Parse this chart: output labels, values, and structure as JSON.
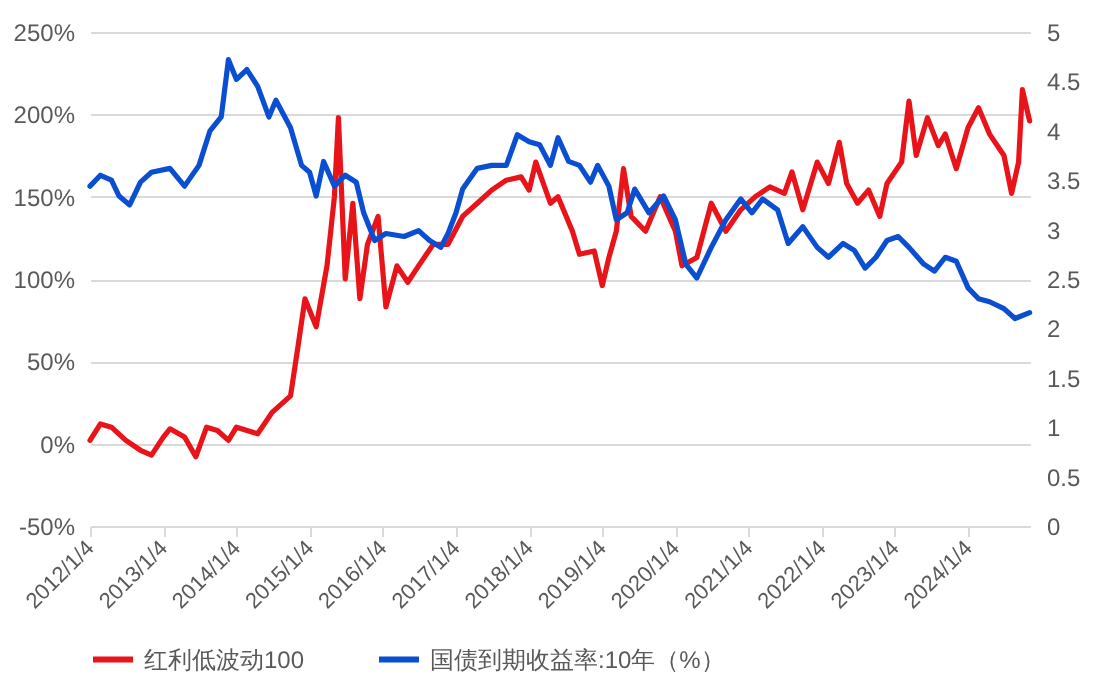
{
  "chart_data": {
    "type": "line",
    "legend": "bottom",
    "grid": "y",
    "xlim": [
      "2012-01-04",
      "2024-11-08"
    ],
    "xticks": [
      {
        "value": "2012-01-04",
        "label": "2012/1/4"
      },
      {
        "value": "2013-01-04",
        "label": "2013/1/4"
      },
      {
        "value": "2014-01-04",
        "label": "2014/1/4"
      },
      {
        "value": "2015-01-04",
        "label": "2015/1/4"
      },
      {
        "value": "2016-01-04",
        "label": "2016/1/4"
      },
      {
        "value": "2017-01-04",
        "label": "2017/1/4"
      },
      {
        "value": "2018-01-04",
        "label": "2018/1/4"
      },
      {
        "value": "2019-01-04",
        "label": "2019/1/4"
      },
      {
        "value": "2020-01-04",
        "label": "2020/1/4"
      },
      {
        "value": "2021-01-04",
        "label": "2021/1/4"
      },
      {
        "value": "2022-01-04",
        "label": "2022/1/4"
      },
      {
        "value": "2023-01-04",
        "label": "2023/1/4"
      },
      {
        "value": "2024-01-04",
        "label": "2024/1/4"
      }
    ],
    "ylim": [
      -50,
      250
    ],
    "yticks": [
      {
        "value": -50,
        "label": "-50%"
      },
      {
        "value": 0,
        "label": "0%"
      },
      {
        "value": 50,
        "label": "50%"
      },
      {
        "value": 100,
        "label": "100%"
      },
      {
        "value": 150,
        "label": "150%"
      },
      {
        "value": 200,
        "label": "200%"
      },
      {
        "value": 250,
        "label": "250%"
      }
    ],
    "y2lim": [
      0,
      5
    ],
    "y2ticks": [
      0,
      0.5,
      1,
      1.5,
      2,
      2.5,
      3,
      3.5,
      4,
      4.5,
      5
    ],
    "series": [
      {
        "name": "红利低波动100",
        "color": "#e8141a",
        "x": [
          "2012-01-04",
          "2012-02-25",
          "2012-04-20",
          "2012-07-01",
          "2012-09-12",
          "2012-11-06",
          "2013-01-04",
          "2013-02-06",
          "2013-04-20",
          "2013-06-15",
          "2013-08-08",
          "2013-10-01",
          "2013-11-25",
          "2014-01-04",
          "2014-04-20",
          "2014-07-01",
          "2014-10-01",
          "2014-11-06",
          "2014-12-12",
          "2015-02-06",
          "2015-04-01",
          "2015-05-08",
          "2015-05-28",
          "2015-07-01",
          "2015-08-08",
          "2015-09-12",
          "2015-10-20",
          "2015-12-12",
          "2016-01-20",
          "2016-03-15",
          "2016-05-08",
          "2016-07-01",
          "2016-09-12",
          "2016-11-25",
          "2017-02-06",
          "2017-04-20",
          "2017-07-01",
          "2017-09-12",
          "2017-11-25",
          "2018-01-04",
          "2018-02-06",
          "2018-04-20",
          "2018-05-28",
          "2018-08-08",
          "2018-09-12",
          "2018-11-25",
          "2019-01-04",
          "2019-02-06",
          "2019-03-15",
          "2019-04-20",
          "2019-05-28",
          "2019-08-08",
          "2019-10-20",
          "2020-01-04",
          "2020-02-06",
          "2020-04-20",
          "2020-07-01",
          "2020-09-12",
          "2020-11-25",
          "2021-02-06",
          "2021-04-20",
          "2021-07-01",
          "2021-08-08",
          "2021-10-01",
          "2021-12-12",
          "2022-02-06",
          "2022-04-01",
          "2022-05-08",
          "2022-07-01",
          "2022-08-25",
          "2022-10-20",
          "2022-11-25",
          "2023-02-06",
          "2023-03-15",
          "2023-04-20",
          "2023-06-15",
          "2023-08-08",
          "2023-09-12",
          "2023-11-06",
          "2024-01-04",
          "2024-02-25",
          "2024-04-20",
          "2024-07-01",
          "2024-08-08",
          "2024-09-12",
          "2024-10-01",
          "2024-11-06"
        ],
        "values": [
          2,
          12,
          10,
          2,
          -4,
          -7,
          4,
          9,
          4,
          -8,
          10,
          8,
          2,
          10,
          6,
          19,
          29,
          58,
          88,
          71,
          108,
          150,
          198,
          100,
          146,
          88,
          121,
          138,
          83,
          108,
          98,
          108,
          121,
          121,
          138,
          146,
          154,
          160,
          162,
          154,
          171,
          146,
          150,
          129,
          115,
          117,
          96,
          113,
          129,
          167,
          138,
          129,
          150,
          129,
          108,
          113,
          146,
          129,
          142,
          150,
          156,
          152,
          165,
          142,
          171,
          158,
          183,
          158,
          146,
          154,
          138,
          158,
          171,
          208,
          175,
          198,
          181,
          188,
          167,
          192,
          204,
          188,
          175,
          152,
          171,
          215,
          196
        ]
      },
      {
        "name": "国债到期收益率:10年（%）",
        "color": "#0a4fd1",
        "axis": "y2",
        "x": [
          "2012-01-04",
          "2012-02-25",
          "2012-04-20",
          "2012-05-28",
          "2012-07-20",
          "2012-09-12",
          "2012-11-06",
          "2013-02-06",
          "2013-04-20",
          "2013-07-01",
          "2013-08-25",
          "2013-10-20",
          "2013-11-25",
          "2014-01-04",
          "2014-02-25",
          "2014-04-20",
          "2014-06-15",
          "2014-07-20",
          "2014-10-01",
          "2014-11-25",
          "2015-01-04",
          "2015-02-06",
          "2015-03-15",
          "2015-05-08",
          "2015-07-01",
          "2015-08-25",
          "2015-10-01",
          "2015-11-25",
          "2016-01-20",
          "2016-04-20",
          "2016-07-01",
          "2016-08-25",
          "2016-10-20",
          "2016-11-25",
          "2017-01-04",
          "2017-02-06",
          "2017-04-20",
          "2017-07-01",
          "2017-09-12",
          "2017-11-06",
          "2018-01-04",
          "2018-02-25",
          "2018-04-20",
          "2018-05-28",
          "2018-07-20",
          "2018-09-12",
          "2018-11-06",
          "2018-12-12",
          "2019-02-06",
          "2019-03-15",
          "2019-05-08",
          "2019-06-15",
          "2019-08-25",
          "2019-11-06",
          "2020-01-04",
          "2020-02-25",
          "2020-04-20",
          "2020-07-01",
          "2020-09-12",
          "2020-11-25",
          "2021-01-20",
          "2021-03-15",
          "2021-05-28",
          "2021-07-20",
          "2021-10-01",
          "2021-12-12",
          "2022-02-06",
          "2022-04-20",
          "2022-06-15",
          "2022-08-08",
          "2022-10-01",
          "2022-11-25",
          "2023-01-20",
          "2023-03-15",
          "2023-05-28",
          "2023-07-20",
          "2023-09-12",
          "2023-11-06",
          "2024-01-04",
          "2024-02-25",
          "2024-04-20",
          "2024-07-01",
          "2024-08-25",
          "2024-11-06"
        ],
        "values": [
          3.44,
          3.55,
          3.5,
          3.34,
          3.25,
          3.48,
          3.58,
          3.62,
          3.44,
          3.65,
          4.0,
          4.14,
          4.72,
          4.52,
          4.62,
          4.45,
          4.14,
          4.31,
          4.03,
          3.65,
          3.58,
          3.34,
          3.69,
          3.44,
          3.55,
          3.48,
          3.17,
          2.89,
          2.96,
          2.93,
          2.99,
          2.89,
          2.82,
          2.96,
          3.17,
          3.41,
          3.62,
          3.65,
          3.65,
          3.96,
          3.89,
          3.86,
          3.65,
          3.93,
          3.69,
          3.65,
          3.48,
          3.65,
          3.44,
          3.1,
          3.17,
          3.41,
          3.17,
          3.34,
          3.1,
          2.65,
          2.51,
          2.82,
          3.1,
          3.31,
          3.17,
          3.31,
          3.2,
          2.86,
          3.03,
          2.82,
          2.72,
          2.86,
          2.79,
          2.61,
          2.72,
          2.89,
          2.93,
          2.82,
          2.65,
          2.58,
          2.72,
          2.68,
          2.41,
          2.3,
          2.27,
          2.2,
          2.1,
          2.16
        ]
      }
    ]
  }
}
